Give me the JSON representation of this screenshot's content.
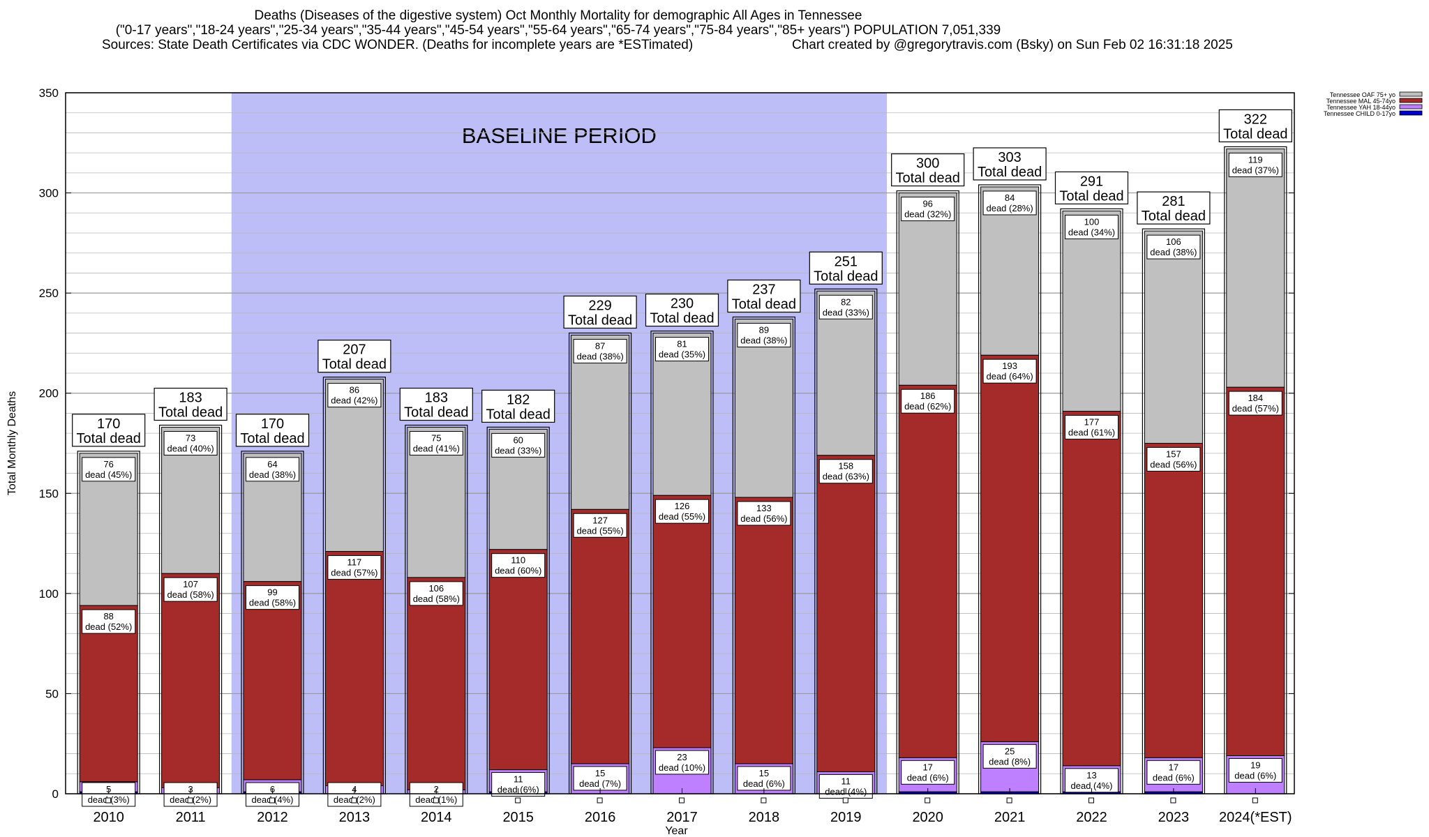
{
  "title_lines": [
    "Deaths (Diseases of the digestive system) Oct Monthly Mortality for demographic All Ages in Tennessee",
    "(\"0-17 years\",\"18-24 years\",\"25-34 years\",\"35-44 years\",\"45-54 years\",\"55-64 years\",\"65-74 years\",\"75-84 years\",\"85+ years\") POPULATION 7,051,339",
    "Sources: State Death Certificates via CDC WONDER. (Deaths for incomplete years are *ESTimated)"
  ],
  "credit": "Chart created by @gregorytravis.com (Bsky) on Sun Feb 02 16:31:18 2025",
  "colors": {
    "oaf": "#c0c0c0",
    "mal": "#a52a2a",
    "yah": "#bf80ff",
    "child": "#0000cc",
    "baseline": "#bdbdf7",
    "grid": "#b8b8b8"
  },
  "chart_data": {
    "type": "bar",
    "stacked": true,
    "xlabel": "Year",
    "ylabel": "Total Monthly Deaths",
    "ylim": [
      0,
      350
    ],
    "yticks": [
      0,
      50,
      100,
      150,
      200,
      250,
      300,
      350
    ],
    "grid": true,
    "legend_position": "top-right",
    "baseline_label": "BASELINE PERIOD",
    "baseline_range": [
      "2012",
      "2019"
    ],
    "total_suffix": "Total dead",
    "segment_word": "dead",
    "categories": [
      "2010",
      "2011",
      "2012",
      "2013",
      "2014",
      "2015",
      "2016",
      "2017",
      "2018",
      "2019",
      "2020",
      "2021",
      "2022",
      "2023",
      "2024(*EST)"
    ],
    "totals": [
      170,
      183,
      170,
      207,
      183,
      182,
      229,
      230,
      237,
      251,
      300,
      303,
      291,
      281,
      322
    ],
    "series": [
      {
        "key": "child",
        "name": "Tennessee CHILD 0-17yo",
        "values": [
          1,
          0,
          1,
          0,
          0,
          1,
          0,
          0,
          0,
          0,
          1,
          1,
          1,
          1,
          0
        ],
        "pct": [
          null,
          null,
          null,
          null,
          null,
          null,
          null,
          null,
          null,
          null,
          null,
          null,
          null,
          null,
          null
        ]
      },
      {
        "key": "yah",
        "name": "Tennessee YAH 18-44yo",
        "values": [
          5,
          3,
          6,
          4,
          2,
          11,
          15,
          23,
          15,
          11,
          17,
          25,
          13,
          17,
          19
        ],
        "pct": [
          "3%",
          "2%",
          "4%",
          "2%",
          "1%",
          "6%",
          "7%",
          "10%",
          "6%",
          "4%",
          "6%",
          "8%",
          "4%",
          "6%",
          "6%"
        ]
      },
      {
        "key": "mal",
        "name": "Tennessee MAL 45-74yo",
        "values": [
          88,
          107,
          99,
          117,
          106,
          110,
          127,
          126,
          133,
          158,
          186,
          193,
          177,
          157,
          184
        ],
        "pct": [
          "52%",
          "58%",
          "58%",
          "57%",
          "58%",
          "60%",
          "55%",
          "55%",
          "56%",
          "63%",
          "62%",
          "64%",
          "61%",
          "56%",
          "57%"
        ]
      },
      {
        "key": "oaf",
        "name": "Tennessee OAF 75+ yo",
        "values": [
          76,
          73,
          64,
          86,
          75,
          60,
          87,
          81,
          89,
          82,
          96,
          84,
          100,
          106,
          119
        ],
        "pct": [
          "45%",
          "40%",
          "38%",
          "42%",
          "41%",
          "33%",
          "38%",
          "35%",
          "38%",
          "33%",
          "32%",
          "28%",
          "34%",
          "38%",
          "37%"
        ]
      }
    ]
  }
}
